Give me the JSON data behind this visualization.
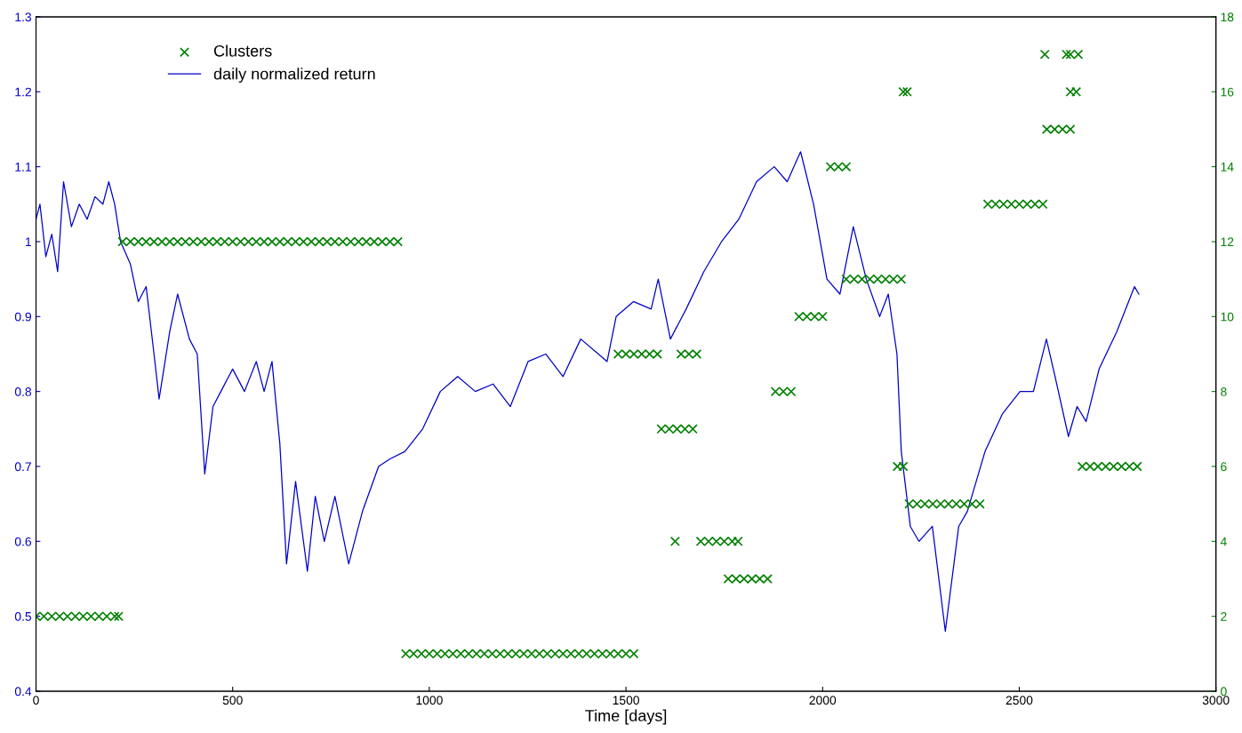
{
  "chart_data": {
    "type": "line",
    "xlabel": "Time [days]",
    "xlim": [
      0,
      3000
    ],
    "xticks": [
      0,
      500,
      1000,
      1500,
      2000,
      2500,
      3000
    ],
    "ylim": [
      0.4,
      1.3
    ],
    "yticks": [
      0.4,
      0.5,
      0.6,
      0.7,
      0.8,
      0.9,
      1,
      1.1,
      1.2,
      1.3
    ],
    "y2lim": [
      0,
      18
    ],
    "y2ticks": [
      0,
      2,
      4,
      6,
      8,
      10,
      12,
      14,
      16,
      18
    ],
    "legend": "top left",
    "grid": false,
    "series": [
      {
        "name": "Clusters",
        "type": "scatter",
        "axis": "y2",
        "marker": "cross",
        "color": "#008000",
        "x": [
          0,
          20,
          40,
          60,
          80,
          100,
          120,
          140,
          160,
          180,
          200,
          210,
          220,
          240,
          260,
          280,
          300,
          320,
          340,
          360,
          380,
          400,
          420,
          440,
          460,
          480,
          500,
          520,
          540,
          560,
          580,
          600,
          620,
          640,
          660,
          680,
          700,
          720,
          740,
          760,
          780,
          800,
          820,
          840,
          860,
          880,
          900,
          920,
          940,
          960,
          980,
          1000,
          1020,
          1040,
          1060,
          1080,
          1100,
          1120,
          1140,
          1160,
          1180,
          1200,
          1220,
          1240,
          1260,
          1280,
          1300,
          1320,
          1340,
          1360,
          1380,
          1400,
          1420,
          1440,
          1460,
          1480,
          1500,
          1520,
          1480,
          1500,
          1520,
          1540,
          1560,
          1580,
          1640,
          1660,
          1680,
          1590,
          1610,
          1630,
          1650,
          1670,
          1625,
          1690,
          1710,
          1730,
          1750,
          1770,
          1785,
          1760,
          1780,
          1800,
          1820,
          1840,
          1860,
          1880,
          1900,
          1920,
          1940,
          1960,
          1980,
          2000,
          2020,
          2040,
          2060,
          2060,
          2080,
          2100,
          2120,
          2140,
          2160,
          2180,
          2200,
          2190,
          2205,
          2660,
          2680,
          2700,
          2720,
          2740,
          2760,
          2780,
          2800,
          2205,
          2215,
          2630,
          2645,
          2220,
          2240,
          2260,
          2280,
          2300,
          2320,
          2340,
          2360,
          2380,
          2400,
          2420,
          2440,
          2460,
          2480,
          2500,
          2520,
          2540,
          2560,
          2570,
          2590,
          2610,
          2630,
          2565,
          2620,
          2630,
          2650
        ],
        "values": [
          2,
          2,
          2,
          2,
          2,
          2,
          2,
          2,
          2,
          2,
          2,
          2,
          12,
          12,
          12,
          12,
          12,
          12,
          12,
          12,
          12,
          12,
          12,
          12,
          12,
          12,
          12,
          12,
          12,
          12,
          12,
          12,
          12,
          12,
          12,
          12,
          12,
          12,
          12,
          12,
          12,
          12,
          12,
          12,
          12,
          12,
          12,
          12,
          1,
          1,
          1,
          1,
          1,
          1,
          1,
          1,
          1,
          1,
          1,
          1,
          1,
          1,
          1,
          1,
          1,
          1,
          1,
          1,
          1,
          1,
          1,
          1,
          1,
          1,
          1,
          1,
          1,
          1,
          9,
          9,
          9,
          9,
          9,
          9,
          9,
          9,
          9,
          7,
          7,
          7,
          7,
          7,
          4,
          4,
          4,
          4,
          4,
          4,
          4,
          3,
          3,
          3,
          3,
          3,
          3,
          8,
          8,
          8,
          10,
          10,
          10,
          10,
          14,
          14,
          14,
          11,
          11,
          11,
          11,
          11,
          11,
          11,
          11,
          6,
          6,
          6,
          6,
          6,
          6,
          6,
          6,
          6,
          6,
          16,
          16,
          16,
          16,
          5,
          5,
          5,
          5,
          5,
          5,
          5,
          5,
          5,
          5,
          13,
          13,
          13,
          13,
          13,
          13,
          13,
          13,
          15,
          15,
          15,
          15,
          17,
          17,
          17,
          17
        ]
      },
      {
        "name": "daily normalized return",
        "color": "#0000c8",
        "x": [
          0,
          10,
          25,
          40,
          55,
          70,
          90,
          110,
          130,
          150,
          170,
          185,
          200,
          215,
          240,
          260,
          280,
          300,
          313,
          340,
          360,
          390,
          410,
          429,
          450,
          470,
          500,
          530,
          560,
          580,
          600,
          620,
          637,
          660,
          690,
          710,
          733,
          760,
          795,
          830,
          871,
          900,
          938,
          983,
          1028,
          1072,
          1117,
          1162,
          1206,
          1251,
          1296,
          1340,
          1385,
          1430,
          1452,
          1475,
          1519,
          1564,
          1582,
          1613,
          1653,
          1698,
          1743,
          1787,
          1832,
          1877,
          1910,
          1944,
          1977,
          2011,
          2044,
          2078,
          2111,
          2145,
          2167,
          2189,
          2200,
          2223,
          2245,
          2279,
          2312,
          2346,
          2368,
          2413,
          2457,
          2502,
          2536,
          2569,
          2591,
          2625,
          2647,
          2670,
          2703,
          2748,
          2793,
          2804
        ],
        "values": [
          1.03,
          1.05,
          0.98,
          1.01,
          0.96,
          1.08,
          1.02,
          1.05,
          1.03,
          1.06,
          1.05,
          1.08,
          1.05,
          1.0,
          0.97,
          0.92,
          0.94,
          0.85,
          0.79,
          0.88,
          0.93,
          0.87,
          0.85,
          0.69,
          0.78,
          0.8,
          0.83,
          0.8,
          0.84,
          0.8,
          0.84,
          0.73,
          0.57,
          0.68,
          0.56,
          0.66,
          0.6,
          0.66,
          0.57,
          0.64,
          0.7,
          0.71,
          0.72,
          0.75,
          0.8,
          0.82,
          0.8,
          0.81,
          0.78,
          0.84,
          0.85,
          0.82,
          0.87,
          0.85,
          0.84,
          0.9,
          0.92,
          0.91,
          0.95,
          0.87,
          0.91,
          0.96,
          1.0,
          1.03,
          1.08,
          1.1,
          1.08,
          1.12,
          1.05,
          0.95,
          0.93,
          1.02,
          0.95,
          0.9,
          0.93,
          0.85,
          0.72,
          0.62,
          0.6,
          0.62,
          0.48,
          0.62,
          0.64,
          0.72,
          0.77,
          0.8,
          0.8,
          0.87,
          0.82,
          0.74,
          0.78,
          0.76,
          0.83,
          0.88,
          0.94,
          0.93
        ]
      }
    ]
  }
}
